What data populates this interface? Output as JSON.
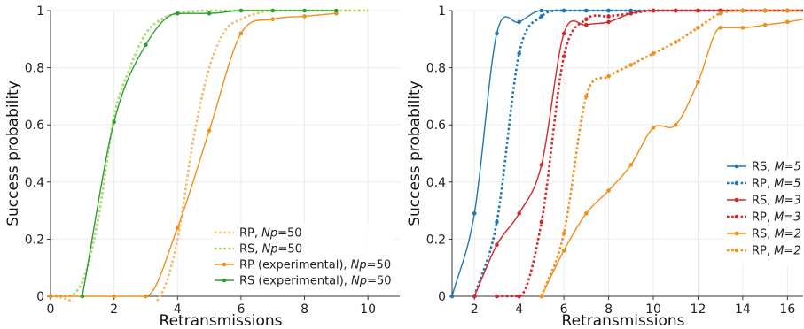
{
  "chart_data": [
    {
      "type": "line",
      "title": "",
      "xlabel": "Retransmissions",
      "ylabel": "Success probability",
      "xlim": [
        0,
        11
      ],
      "ylim": [
        0,
        1
      ],
      "xticks": [
        0,
        2,
        4,
        6,
        8,
        10
      ],
      "yticks": [
        0,
        0.2,
        0.4,
        0.6,
        0.8,
        1
      ],
      "grid": true,
      "legend_position": "bottom-right",
      "series": [
        {
          "name": "RP, Np=50",
          "label_pre": "RP, ",
          "label_var": "Np",
          "label_post": "=50",
          "color": "#f7b96b",
          "style": "dotted",
          "markers": false,
          "x": [
            0,
            3.5,
            4,
            4.5,
            5,
            5.5,
            6,
            6.5,
            7,
            8,
            9,
            10
          ],
          "y": [
            0,
            0.01,
            0.2,
            0.55,
            0.8,
            0.93,
            0.97,
            0.99,
            1,
            1,
            1,
            1
          ]
        },
        {
          "name": "RS, Np=50",
          "label_pre": "RS, ",
          "label_var": "Np",
          "label_post": "=50",
          "color": "#a6d96a",
          "style": "dotted",
          "markers": false,
          "x": [
            0,
            1,
            1.5,
            2,
            2.5,
            3,
            3.5,
            4,
            5,
            6,
            7,
            8,
            9,
            10
          ],
          "y": [
            0,
            0.05,
            0.27,
            0.63,
            0.8,
            0.92,
            0.97,
            0.99,
            1,
            1,
            1,
            1,
            1,
            1
          ]
        },
        {
          "name": "RP (experimental), Np=50",
          "label_pre": "RP (experimental), ",
          "label_var": "Np",
          "label_post": "=50",
          "color": "#f28e1c",
          "style": "solid",
          "markers": true,
          "x": [
            0,
            1,
            2,
            3,
            4,
            5,
            6,
            7,
            8,
            9
          ],
          "y": [
            0,
            0,
            0,
            0,
            0.24,
            0.58,
            0.92,
            0.97,
            0.98,
            0.99
          ]
        },
        {
          "name": "RS (experimental), Np=50",
          "label_pre": "RS (experimental), ",
          "label_var": "Np",
          "label_post": "=50",
          "color": "#2ca02c",
          "style": "solid",
          "markers": true,
          "x": [
            1,
            2,
            3,
            4,
            5,
            6,
            7,
            8,
            9
          ],
          "y": [
            0,
            0.61,
            0.88,
            0.99,
            0.99,
            1,
            1,
            1,
            1
          ]
        }
      ]
    },
    {
      "type": "line",
      "title": "",
      "xlabel": "Retransmissions",
      "ylabel": "Success probability",
      "xlim": [
        1,
        16.7
      ],
      "ylim": [
        0,
        1
      ],
      "xticks": [
        2,
        4,
        6,
        8,
        10,
        12,
        14,
        16
      ],
      "yticks": [
        0,
        0.2,
        0.4,
        0.6,
        0.8,
        1
      ],
      "grid": true,
      "legend_position": "right",
      "series": [
        {
          "name": "RS, M=5",
          "label_pre": "RS, ",
          "label_var": "M=5",
          "label_post": "",
          "color": "#1f77b4",
          "style": "solid",
          "markers": true,
          "x": [
            1,
            2,
            3,
            4,
            5,
            6,
            7,
            8,
            9,
            10,
            11,
            12,
            13,
            14,
            15,
            16,
            16.7
          ],
          "y": [
            0,
            0.29,
            0.92,
            0.96,
            1,
            1,
            1,
            1,
            1,
            1,
            1,
            1,
            1,
            1,
            1,
            1,
            1
          ]
        },
        {
          "name": "RP, M=5",
          "label_pre": "RP, ",
          "label_var": "M=5",
          "label_post": "",
          "color": "#1f77b4",
          "style": "dotted",
          "markers": true,
          "x": [
            2,
            3,
            4,
            5,
            6,
            7,
            8,
            9,
            10,
            11,
            12,
            13,
            14,
            15,
            16,
            16.7
          ],
          "y": [
            0,
            0.26,
            0.85,
            0.98,
            1,
            1,
            1,
            1,
            1,
            1,
            1,
            1,
            1,
            1,
            1,
            1
          ]
        },
        {
          "name": "RS, M=3",
          "label_pre": "RS, ",
          "label_var": "M=3",
          "label_post": "",
          "color": "#d62728",
          "style": "solid",
          "markers": true,
          "x": [
            2,
            3,
            4,
            5,
            6,
            7,
            8,
            9,
            10,
            11,
            12,
            13,
            14,
            15,
            16,
            16.7
          ],
          "y": [
            0,
            0.18,
            0.29,
            0.46,
            0.92,
            0.95,
            0.96,
            0.99,
            1,
            1,
            1,
            1,
            1,
            1,
            1,
            1
          ]
        },
        {
          "name": "RP, M=3",
          "label_pre": "RP, ",
          "label_var": "M=3",
          "label_post": "",
          "color": "#d62728",
          "style": "dotted",
          "markers": true,
          "x": [
            3,
            4,
            5,
            6,
            7,
            8,
            9,
            10,
            11,
            12,
            13,
            14,
            15,
            16,
            16.7
          ],
          "y": [
            0,
            0,
            0.26,
            0.84,
            0.97,
            0.98,
            0.99,
            1,
            1,
            1,
            1,
            1,
            1,
            1,
            1
          ]
        },
        {
          "name": "RS, M=2",
          "label_pre": "RS, ",
          "label_var": "M=2",
          "label_post": "",
          "color": "#f28e1c",
          "style": "solid",
          "markers": true,
          "x": [
            5,
            6,
            7,
            8,
            9,
            10,
            11,
            12,
            13,
            14,
            15,
            16,
            16.7
          ],
          "y": [
            0,
            0.16,
            0.29,
            0.37,
            0.46,
            0.59,
            0.6,
            0.75,
            0.94,
            0.94,
            0.95,
            0.96,
            0.97
          ]
        },
        {
          "name": "RP, M=2",
          "label_pre": "RP, ",
          "label_var": "M=2",
          "label_post": "",
          "color": "#f28e1c",
          "style": "dotted",
          "markers": true,
          "x": [
            5,
            6,
            7,
            8,
            9,
            10,
            11,
            12,
            13,
            14,
            15,
            16,
            16.7
          ],
          "y": [
            0,
            0.22,
            0.7,
            0.77,
            0.81,
            0.85,
            0.89,
            0.94,
            0.99,
            1,
            1,
            1,
            1
          ]
        }
      ]
    }
  ]
}
